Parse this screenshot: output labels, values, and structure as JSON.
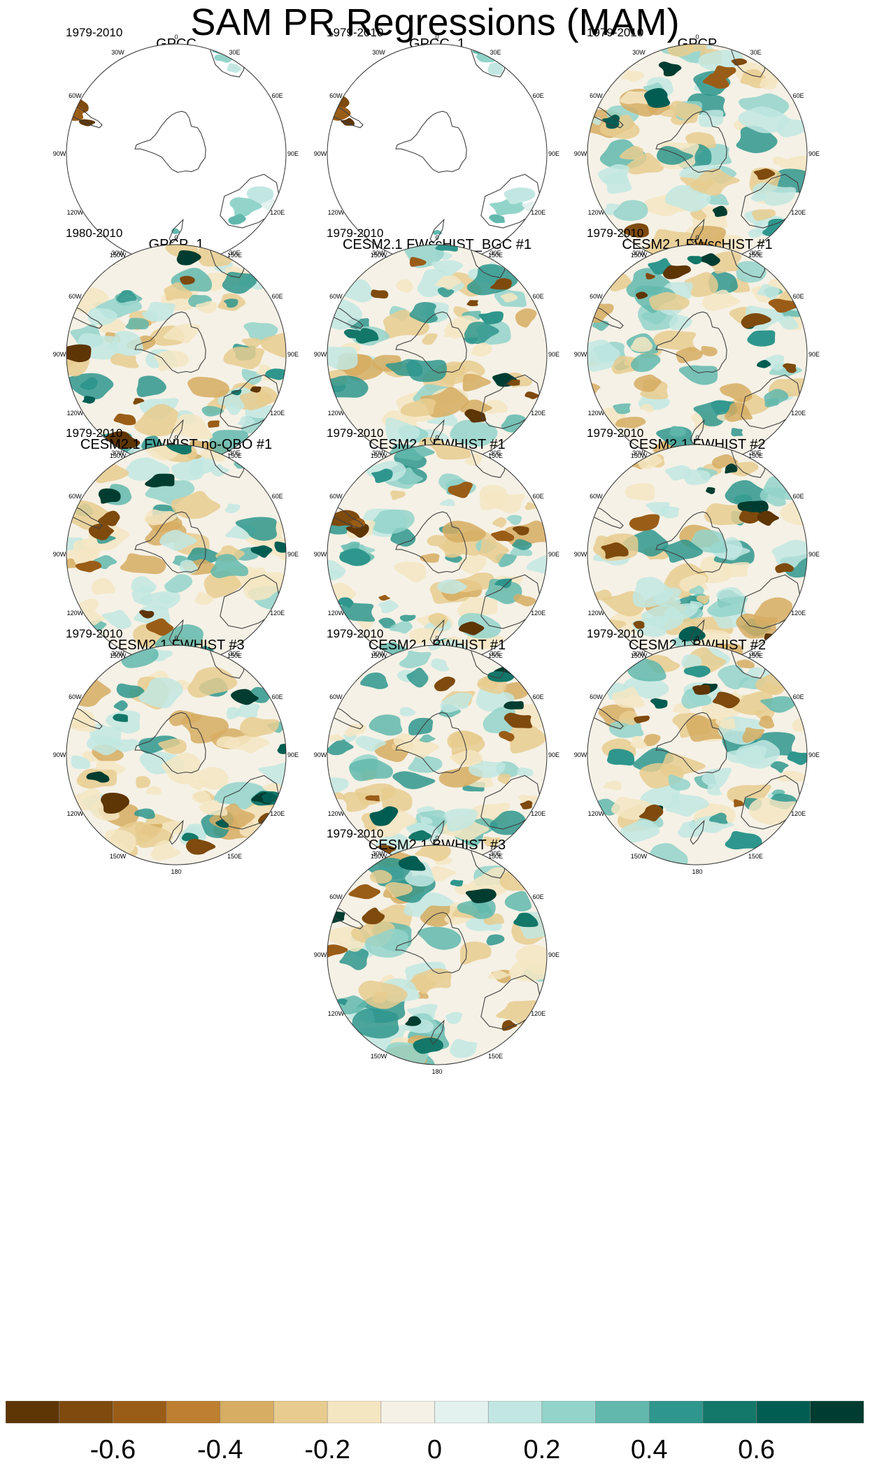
{
  "figure": {
    "title": "SAM PR Regressions (MAM)"
  },
  "lon_labels": [
    {
      "label": "0",
      "deg": 0
    },
    {
      "label": "30E",
      "deg": 30
    },
    {
      "label": "60E",
      "deg": 60
    },
    {
      "label": "90E",
      "deg": 90
    },
    {
      "label": "120E",
      "deg": 120
    },
    {
      "label": "150E",
      "deg": 150
    },
    {
      "label": "180",
      "deg": 180
    },
    {
      "label": "150W",
      "deg": 210
    },
    {
      "label": "120W",
      "deg": 240
    },
    {
      "label": "90W",
      "deg": 270
    },
    {
      "label": "60W",
      "deg": 300
    },
    {
      "label": "30W",
      "deg": 330
    }
  ],
  "panels": [
    {
      "title": "GPCC",
      "period": "1979-2010",
      "land_only": true
    },
    {
      "title": "GPCC_1",
      "period": "1979-2010",
      "land_only": true
    },
    {
      "title": "GPCP",
      "period": "1979-2010",
      "land_only": false
    },
    {
      "title": "GPCP_1",
      "period": "1980-2010",
      "land_only": false
    },
    {
      "title": "CESM2.1 FWscHIST_BGC #1",
      "period": "1979-2010",
      "land_only": false
    },
    {
      "title": "CESM2.1 FWscHIST #1",
      "period": "1979-2010",
      "land_only": false
    },
    {
      "title": "CESM2.1 FWHIST no-QBO #1",
      "period": "1979-2010",
      "land_only": false
    },
    {
      "title": "CESM2.1 FWHIST #1",
      "period": "1979-2010",
      "land_only": false
    },
    {
      "title": "CESM2.1 FWHIST #2",
      "period": "1979-2010",
      "land_only": false
    },
    {
      "title": "CESM2.1 FWHIST #3",
      "period": "1979-2010",
      "land_only": false
    },
    {
      "title": "CESM2.1 BWHIST #1",
      "period": "1979-2010",
      "land_only": false
    },
    {
      "title": "CESM2.1 BWHIST #2",
      "period": "1979-2010",
      "land_only": false
    },
    {
      "title": "CESM2.1 BWHIST #3",
      "period": "1979-2010",
      "land_only": false
    }
  ],
  "colorbar": {
    "colors": [
      "#5e3504",
      "#7e4a0e",
      "#9a5d17",
      "#be8030",
      "#d6ad62",
      "#e8cc8f",
      "#f5e6c2",
      "#f5f1e6",
      "#e3f1ef",
      "#c2e7e2",
      "#93d4ca",
      "#62b8ad",
      "#2f968d",
      "#137769",
      "#015d52",
      "#003d30"
    ],
    "tick_labels": [
      {
        "label": "-0.6",
        "value": -0.6
      },
      {
        "label": "-0.4",
        "value": -0.4
      },
      {
        "label": "-0.2",
        "value": -0.2
      },
      {
        "label": "0",
        "value": 0
      },
      {
        "label": "0.2",
        "value": 0.2
      },
      {
        "label": "0.4",
        "value": 0.4
      },
      {
        "label": "0.6",
        "value": 0.6
      }
    ],
    "range": [
      -0.8,
      0.8
    ]
  },
  "colors": {
    "ocean": "#f5f1e6",
    "coast": "#404040",
    "frame": "#333333"
  }
}
